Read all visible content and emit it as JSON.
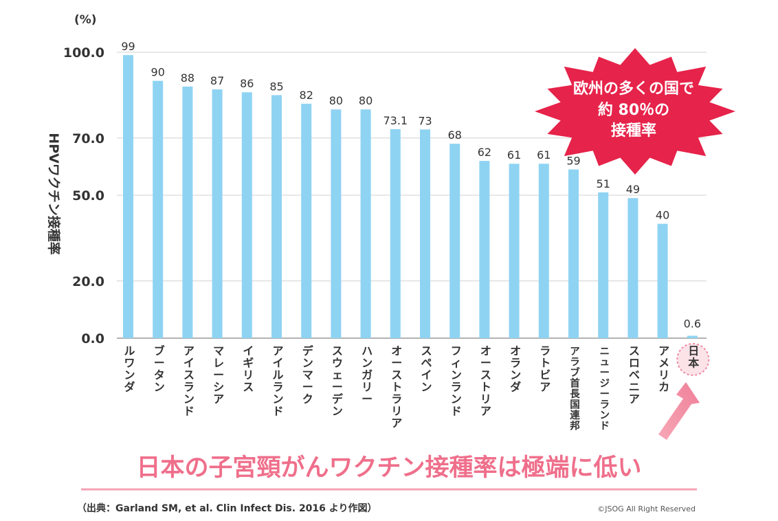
{
  "chart_data": {
    "type": "bar",
    "unit": "(%)",
    "ylabel": "HPVワクチン接種率",
    "ylim": [
      0,
      100
    ],
    "yticks": [
      "0.0",
      "20.0",
      "50.0",
      "70.0",
      "100.0"
    ],
    "grid": true,
    "categories": [
      "ルワンダ",
      "ブータン",
      "アイスランド",
      "マレーシア",
      "イギリス",
      "アイルランド",
      "デンマーク",
      "スウェーデン",
      "ハンガリー",
      "オーストラリア",
      "スペイン",
      "フィンランド",
      "オーストリア",
      "オランダ",
      "ラトビア",
      "アラブ首長国連邦",
      "ニュージーランド",
      "スロベニア",
      "アメリカ",
      "日本"
    ],
    "values": [
      99,
      90,
      88,
      87,
      86,
      85,
      82,
      80,
      80,
      73.1,
      73,
      68,
      62,
      61,
      61,
      59,
      51,
      49,
      40,
      0.6
    ],
    "value_labels": [
      "99",
      "90",
      "88",
      "87",
      "86",
      "85",
      "82",
      "80",
      "80",
      "73.1",
      "73",
      "68",
      "62",
      "61",
      "61",
      "59",
      "51",
      "49",
      "40",
      "0.6"
    ],
    "bar_color": "#8fd3f3",
    "highlight_category": "日本"
  },
  "callout": {
    "lines": [
      "欧州の多くの国で",
      "約 80％の",
      "接種率"
    ],
    "color": "#e6234a"
  },
  "headline": {
    "text": "日本の子宮頸がんワクチン接種率は極端に低い",
    "color": "#ef6f8b"
  },
  "source": "（出典：Garland SM, et al. Clin Infect Dis. 2016 より作図）",
  "copyright": "©JSOG All Right Reserved"
}
